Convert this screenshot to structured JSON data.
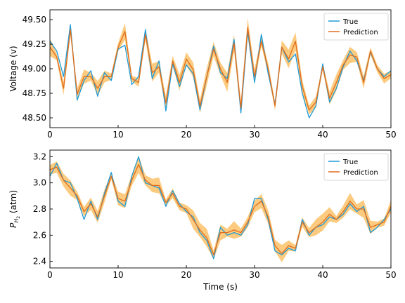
{
  "chart_data": [
    {
      "type": "line",
      "ylabel": "Voltage (v)",
      "xlabel": "",
      "xlim": [
        0,
        50
      ],
      "ylim": [
        48.4,
        49.6
      ],
      "xticks": [
        0,
        10,
        20,
        30,
        40,
        50
      ],
      "yticks": [
        48.5,
        48.75,
        49.0,
        49.25,
        49.5
      ],
      "ytick_labels": [
        "48.50",
        "48.75",
        "49.00",
        "49.25",
        "49.50"
      ],
      "legend_position": "top-right",
      "band_color": "#fbc268",
      "x": [
        0,
        1,
        2,
        3,
        4,
        5,
        6,
        7,
        8,
        9,
        10,
        11,
        12,
        13,
        14,
        15,
        16,
        17,
        18,
        19,
        20,
        21,
        22,
        23,
        24,
        25,
        26,
        27,
        28,
        29,
        30,
        31,
        32,
        33,
        34,
        35,
        36,
        37,
        38,
        39,
        40,
        41,
        42,
        43,
        44,
        45,
        46,
        47,
        48,
        49,
        50
      ],
      "series": [
        {
          "name": "True",
          "color": "#1f9ad6",
          "values": [
            49.28,
            49.18,
            48.92,
            49.45,
            48.68,
            48.88,
            48.98,
            48.72,
            48.96,
            48.88,
            49.2,
            49.24,
            48.84,
            48.92,
            49.4,
            48.9,
            49.08,
            48.57,
            49.05,
            48.82,
            49.04,
            48.95,
            48.58,
            48.92,
            49.23,
            48.96,
            48.9,
            49.3,
            48.55,
            49.38,
            48.86,
            49.35,
            48.95,
            48.64,
            49.22,
            49.07,
            49.15,
            48.75,
            48.5,
            48.62,
            49.05,
            48.66,
            48.8,
            49.02,
            49.18,
            49.08,
            48.88,
            49.17,
            49.0,
            48.92,
            48.98
          ]
        },
        {
          "name": "Prediction",
          "color": "#e06d1c",
          "values": [
            49.22,
            49.12,
            48.8,
            49.4,
            48.74,
            48.92,
            48.92,
            48.8,
            48.92,
            48.92,
            49.22,
            49.38,
            48.9,
            48.86,
            49.35,
            48.96,
            49.02,
            48.65,
            49.08,
            48.86,
            49.1,
            48.99,
            48.62,
            48.92,
            49.2,
            49.0,
            48.86,
            49.26,
            48.6,
            49.42,
            48.92,
            49.28,
            49.0,
            48.62,
            49.22,
            49.1,
            49.28,
            48.82,
            48.58,
            48.66,
            49.02,
            48.7,
            48.86,
            49.04,
            49.14,
            49.12,
            48.86,
            49.18,
            49.0,
            48.9,
            48.94
          ]
        }
      ]
    },
    {
      "type": "line",
      "ylabel": "P_H2 (atm)",
      "ylabel_main": "P",
      "ylabel_sub": "H",
      "ylabel_subsub": "2",
      "ylabel_unit": " (atm)",
      "xlabel": "Time (s)",
      "xlim": [
        0,
        50
      ],
      "ylim": [
        2.35,
        3.25
      ],
      "xticks": [
        0,
        10,
        20,
        30,
        40,
        50
      ],
      "yticks": [
        2.4,
        2.6,
        2.8,
        3.0,
        3.2
      ],
      "ytick_labels": [
        "2.4",
        "2.6",
        "2.8",
        "3.0",
        "3.2"
      ],
      "legend_position": "top-right",
      "band_color": "#fbc268",
      "x": [
        0,
        1,
        2,
        3,
        4,
        5,
        6,
        7,
        8,
        9,
        10,
        11,
        12,
        13,
        14,
        15,
        16,
        17,
        18,
        19,
        20,
        21,
        22,
        23,
        24,
        25,
        26,
        27,
        28,
        29,
        30,
        31,
        32,
        33,
        34,
        35,
        36,
        37,
        38,
        39,
        40,
        41,
        42,
        43,
        44,
        45,
        46,
        47,
        48,
        49,
        50
      ],
      "series": [
        {
          "name": "True",
          "color": "#1f9ad6",
          "values": [
            3.05,
            3.15,
            3.02,
            3.0,
            2.88,
            2.72,
            2.86,
            2.72,
            2.92,
            3.08,
            2.86,
            2.82,
            3.05,
            3.2,
            3.0,
            2.98,
            2.96,
            2.82,
            2.94,
            2.84,
            2.78,
            2.74,
            2.62,
            2.56,
            2.42,
            2.66,
            2.6,
            2.62,
            2.6,
            2.68,
            2.88,
            2.88,
            2.72,
            2.48,
            2.45,
            2.5,
            2.48,
            2.72,
            2.6,
            2.66,
            2.68,
            2.74,
            2.72,
            2.76,
            2.84,
            2.78,
            2.82,
            2.62,
            2.66,
            2.72,
            2.8
          ]
        },
        {
          "name": "Prediction",
          "color": "#e06d1c",
          "values": [
            3.1,
            3.12,
            3.02,
            2.96,
            2.9,
            2.78,
            2.84,
            2.74,
            2.9,
            3.05,
            2.88,
            2.86,
            3.02,
            3.14,
            3.02,
            2.98,
            2.98,
            2.85,
            2.92,
            2.82,
            2.8,
            2.72,
            2.64,
            2.58,
            2.45,
            2.62,
            2.62,
            2.64,
            2.62,
            2.7,
            2.82,
            2.86,
            2.74,
            2.52,
            2.46,
            2.52,
            2.5,
            2.7,
            2.62,
            2.66,
            2.7,
            2.76,
            2.72,
            2.78,
            2.86,
            2.8,
            2.8,
            2.66,
            2.68,
            2.7,
            2.82
          ]
        }
      ]
    }
  ]
}
